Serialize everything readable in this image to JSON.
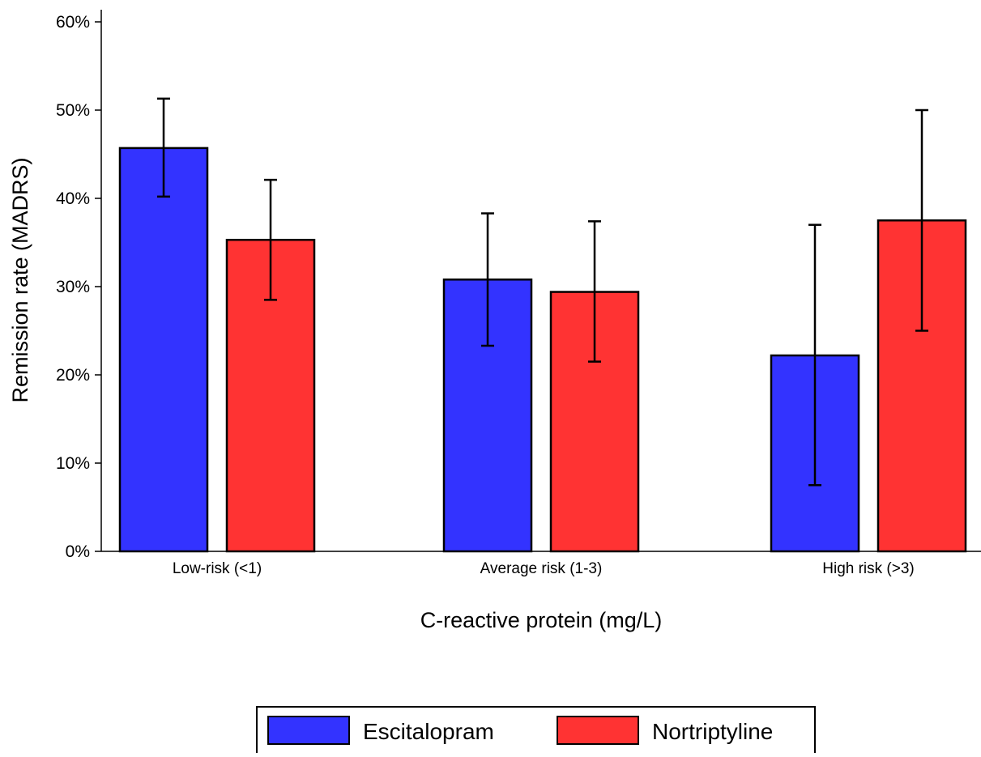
{
  "chart_data": {
    "type": "bar",
    "title": "",
    "xlabel": "C-reactive protein (mg/L)",
    "ylabel": "Remission rate (MADRS)",
    "ylim": [
      0,
      0.6
    ],
    "yticks": [
      {
        "value": 0,
        "label": "0%"
      },
      {
        "value": 0.1,
        "label": "10%"
      },
      {
        "value": 0.2,
        "label": "20%"
      },
      {
        "value": 0.3,
        "label": "30%"
      },
      {
        "value": 0.4,
        "label": "40%"
      },
      {
        "value": 0.5,
        "label": "50%"
      },
      {
        "value": 0.6,
        "label": "60%"
      }
    ],
    "categories": [
      "Low-risk (<1)",
      "Average risk (1-3)",
      "High risk (>3)"
    ],
    "series": [
      {
        "name": "Escitalopram",
        "color": "#3333ff",
        "values": [
          0.457,
          0.308,
          0.222
        ],
        "error_low": [
          0.402,
          0.233,
          0.075
        ],
        "error_high": [
          0.513,
          0.383,
          0.37
        ]
      },
      {
        "name": "Nortriptyline",
        "color": "#ff3333",
        "values": [
          0.353,
          0.294,
          0.375
        ],
        "error_low": [
          0.285,
          0.215,
          0.25
        ],
        "error_high": [
          0.421,
          0.374,
          0.5
        ]
      }
    ],
    "grid": false,
    "legend_position": "bottom"
  }
}
